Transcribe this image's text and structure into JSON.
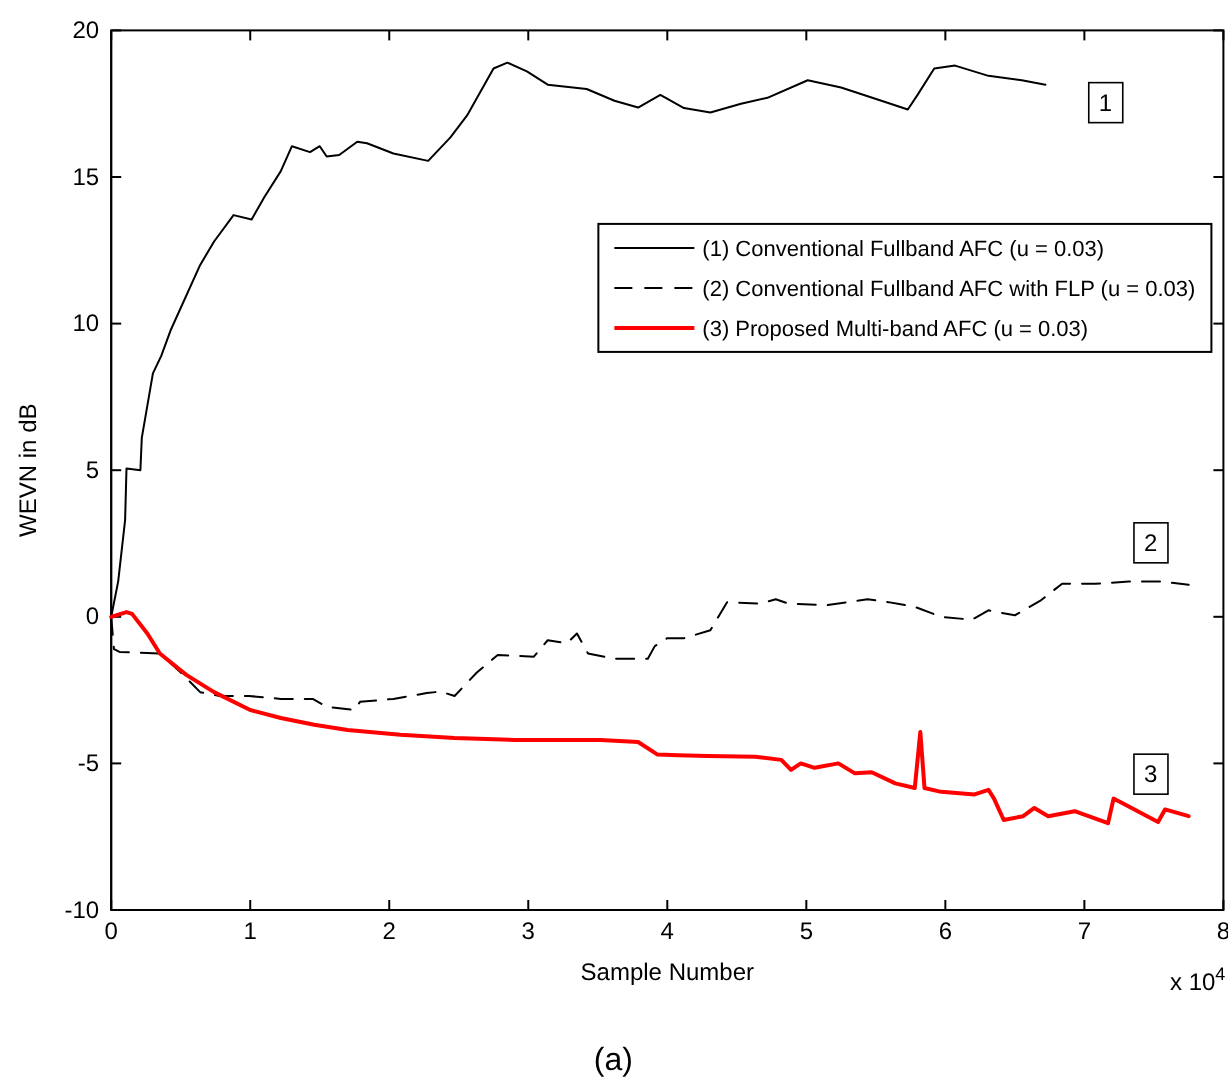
{
  "chart_data": {
    "type": "line",
    "xlabel": "Sample Number",
    "ylabel": "WEVN in dB",
    "xlim": [
      0,
      8
    ],
    "ylim": [
      -10,
      20
    ],
    "xticks": [
      0,
      1,
      2,
      3,
      4,
      5,
      6,
      7,
      8
    ],
    "yticks": [
      -10,
      -5,
      0,
      5,
      10,
      15,
      20
    ],
    "grid": false,
    "legend": "right",
    "series": [
      {
        "name": "(1) Conventional Fullband AFC (u = 0.03)",
        "color": "#000000",
        "line_style": "solid",
        "x": [
          0,
          0.05,
          0.1,
          0.11,
          0.21,
          0.22,
          0.3,
          0.36,
          0.43,
          0.64,
          0.74,
          0.88,
          1.01,
          1.1,
          1.22,
          1.3,
          1.43,
          1.5,
          1.55,
          1.64,
          1.77,
          1.84,
          2.03,
          2.28,
          2.44,
          2.56,
          2.75,
          2.85,
          2.99,
          3.14,
          3.42,
          3.62,
          3.79,
          3.95,
          4.12,
          4.31,
          4.53,
          4.72,
          5.01,
          5.25,
          5.54,
          5.73,
          5.8,
          5.92,
          6.07,
          6.31,
          6.55,
          6.72
        ],
        "values": [
          0,
          1.2,
          3.3,
          5.06,
          5.0,
          6.1,
          8.3,
          8.9,
          9.8,
          12.0,
          12.8,
          13.7,
          13.55,
          14.3,
          15.2,
          16.05,
          15.85,
          16.05,
          15.7,
          15.75,
          16.2,
          16.15,
          15.8,
          15.55,
          16.35,
          17.1,
          18.7,
          18.9,
          18.6,
          18.15,
          18.0,
          17.6,
          17.37,
          17.8,
          17.35,
          17.2,
          17.5,
          17.7,
          18.3,
          18.05,
          17.6,
          17.3,
          17.8,
          18.7,
          18.8,
          18.45,
          18.3,
          18.15
        ]
      },
      {
        "name": "(2) Conventional Fullband AFC with FLP (u = 0.03)",
        "color": "#000000",
        "line_style": "dashed",
        "x": [
          0,
          0.02,
          0.06,
          0.35,
          0.5,
          0.64,
          0.78,
          0.99,
          1.22,
          1.45,
          1.55,
          1.75,
          1.79,
          2.03,
          2.27,
          2.37,
          2.47,
          2.63,
          2.78,
          3.04,
          3.14,
          3.28,
          3.35,
          3.43,
          3.62,
          3.86,
          3.91,
          4.0,
          4.12,
          4.31,
          4.43,
          4.67,
          4.78,
          4.87,
          5.15,
          5.44,
          5.59,
          5.78,
          5.97,
          6.19,
          6.31,
          6.5,
          6.69,
          6.84,
          7.08,
          7.32,
          7.56,
          7.75
        ],
        "values": [
          0,
          -1.1,
          -1.2,
          -1.25,
          -1.9,
          -2.57,
          -2.7,
          -2.7,
          -2.8,
          -2.8,
          -3.07,
          -3.18,
          -2.9,
          -2.8,
          -2.6,
          -2.55,
          -2.7,
          -1.9,
          -1.3,
          -1.36,
          -0.8,
          -0.9,
          -0.57,
          -1.25,
          -1.43,
          -1.43,
          -1.0,
          -0.73,
          -0.73,
          -0.46,
          0.5,
          0.45,
          0.6,
          0.45,
          0.4,
          0.6,
          0.5,
          0.34,
          0.0,
          -0.1,
          0.22,
          0.05,
          0.57,
          1.13,
          1.13,
          1.2,
          1.2,
          1.09
        ]
      },
      {
        "name": "(3) Proposed Multi-band AFC (u = 0.03)",
        "color": "#ff0000",
        "line_style": "solid",
        "x": [
          0,
          0.11,
          0.15,
          0.26,
          0.35,
          0.54,
          0.74,
          1.0,
          1.22,
          1.46,
          1.7,
          2.08,
          2.47,
          2.9,
          3.52,
          3.79,
          3.93,
          4.08,
          4.29,
          4.63,
          4.82,
          4.89,
          4.96,
          5.06,
          5.23,
          5.35,
          5.47,
          5.64,
          5.78,
          5.82,
          5.85,
          5.97,
          6.21,
          6.31,
          6.35,
          6.42,
          6.56,
          6.64,
          6.74,
          6.93,
          7.17,
          7.21,
          7.36,
          7.53,
          7.58,
          7.75
        ],
        "values": [
          0,
          0.16,
          0.1,
          -0.57,
          -1.25,
          -1.98,
          -2.57,
          -3.18,
          -3.45,
          -3.68,
          -3.86,
          -4.02,
          -4.13,
          -4.2,
          -4.2,
          -4.27,
          -4.7,
          -4.72,
          -4.75,
          -4.77,
          -4.88,
          -5.22,
          -5.0,
          -5.15,
          -5.0,
          -5.34,
          -5.3,
          -5.68,
          -5.84,
          -3.93,
          -5.84,
          -5.97,
          -6.06,
          -5.9,
          -6.2,
          -6.93,
          -6.8,
          -6.52,
          -6.8,
          -6.63,
          -7.04,
          -6.2,
          -6.57,
          -7.0,
          -6.57,
          -6.8
        ]
      }
    ],
    "annotations": [
      "1",
      "2",
      "3",
      "x 10$^{4}$",
      "(a)"
    ]
  }
}
